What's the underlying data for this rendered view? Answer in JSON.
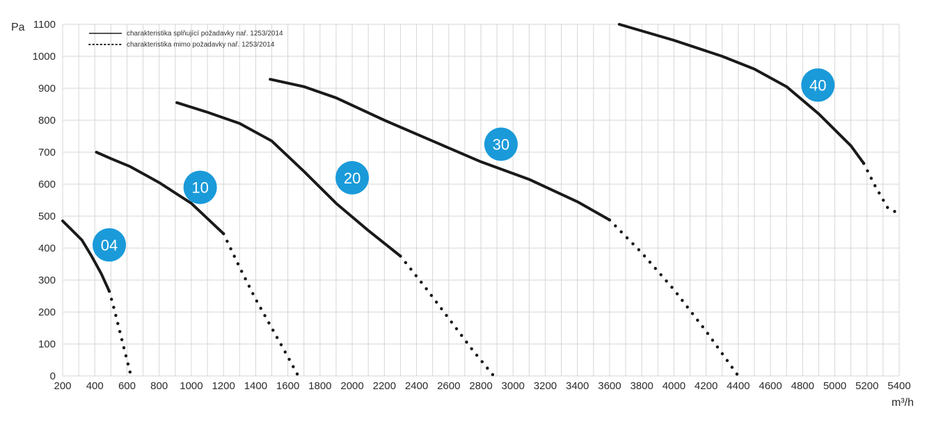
{
  "chart_data": {
    "type": "line",
    "title": "",
    "ylabel": "Pa",
    "xlabel": "m³/h",
    "xlim": [
      200,
      5400
    ],
    "ylim": [
      0,
      1100
    ],
    "grid": true,
    "x_ticks": [
      200,
      400,
      600,
      800,
      1000,
      1200,
      1400,
      1600,
      1800,
      2000,
      2200,
      2400,
      2600,
      2800,
      3000,
      3200,
      3400,
      3600,
      3800,
      4000,
      4200,
      4400,
      4600,
      4800,
      5000,
      5200,
      5400
    ],
    "y_ticks": [
      0,
      100,
      200,
      300,
      400,
      500,
      600,
      700,
      800,
      900,
      1000,
      1100
    ],
    "legend": {
      "placement": "top-left",
      "entries": [
        {
          "label": "charakteristika splňující požadavky nař. 1253/2014",
          "style": "solid"
        },
        {
          "label": "charakteristika mimo požadavky nař. 1253/2014",
          "style": "dotted"
        }
      ]
    },
    "badge_color": "#1a9ad9",
    "line_color": "#1a1a1a",
    "series": [
      {
        "name": "04",
        "label_at": [
          490,
          410
        ],
        "solid": [
          [
            200,
            485
          ],
          [
            260,
            455
          ],
          [
            320,
            425
          ],
          [
            380,
            375
          ],
          [
            440,
            320
          ],
          [
            490,
            265
          ]
        ],
        "dotted": [
          [
            490,
            265
          ],
          [
            520,
            210
          ],
          [
            550,
            150
          ],
          [
            580,
            90
          ],
          [
            610,
            30
          ],
          [
            625,
            0
          ]
        ]
      },
      {
        "name": "10",
        "label_at": [
          1055,
          590
        ],
        "solid": [
          [
            410,
            700
          ],
          [
            500,
            680
          ],
          [
            620,
            655
          ],
          [
            800,
            605
          ],
          [
            1000,
            540
          ],
          [
            1200,
            445
          ]
        ],
        "dotted": [
          [
            1200,
            445
          ],
          [
            1300,
            340
          ],
          [
            1400,
            240
          ],
          [
            1500,
            150
          ],
          [
            1600,
            60
          ],
          [
            1665,
            0
          ]
        ]
      },
      {
        "name": "20",
        "label_at": [
          2000,
          620
        ],
        "solid": [
          [
            910,
            855
          ],
          [
            1100,
            825
          ],
          [
            1300,
            790
          ],
          [
            1500,
            735
          ],
          [
            1700,
            640
          ],
          [
            1900,
            540
          ],
          [
            2100,
            455
          ],
          [
            2300,
            375
          ]
        ],
        "dotted": [
          [
            2300,
            375
          ],
          [
            2450,
            280
          ],
          [
            2600,
            180
          ],
          [
            2750,
            80
          ],
          [
            2880,
            0
          ]
        ]
      },
      {
        "name": "30",
        "label_at": [
          2925,
          725
        ],
        "solid": [
          [
            1490,
            928
          ],
          [
            1700,
            905
          ],
          [
            1900,
            870
          ],
          [
            2200,
            800
          ],
          [
            2500,
            735
          ],
          [
            2800,
            670
          ],
          [
            3100,
            615
          ],
          [
            3400,
            545
          ],
          [
            3600,
            488
          ]
        ],
        "dotted": [
          [
            3600,
            488
          ],
          [
            3800,
            385
          ],
          [
            4000,
            270
          ],
          [
            4200,
            140
          ],
          [
            4400,
            0
          ]
        ]
      },
      {
        "name": "40",
        "label_at": [
          4895,
          910
        ],
        "solid": [
          [
            3660,
            1100
          ],
          [
            4000,
            1050
          ],
          [
            4300,
            1000
          ],
          [
            4500,
            960
          ],
          [
            4700,
            905
          ],
          [
            4900,
            820
          ],
          [
            5100,
            720
          ],
          [
            5180,
            665
          ]
        ],
        "dotted": [
          [
            5180,
            665
          ],
          [
            5250,
            595
          ],
          [
            5330,
            525
          ],
          [
            5390,
            510
          ]
        ]
      }
    ]
  }
}
